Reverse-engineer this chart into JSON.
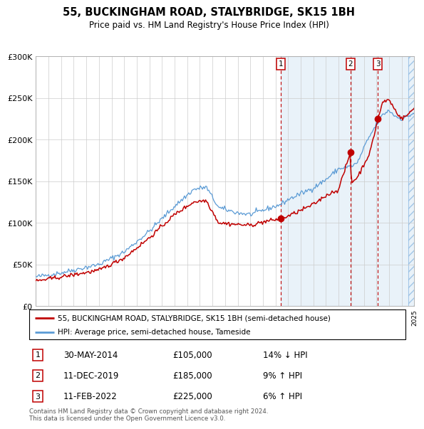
{
  "title": "55, BUCKINGHAM ROAD, STALYBRIDGE, SK15 1BH",
  "subtitle": "Price paid vs. HM Land Registry's House Price Index (HPI)",
  "ylim": [
    0,
    300000
  ],
  "yticks": [
    0,
    50000,
    100000,
    150000,
    200000,
    250000,
    300000
  ],
  "ytick_labels": [
    "£0",
    "£50K",
    "£100K",
    "£150K",
    "£200K",
    "£250K",
    "£300K"
  ],
  "x_start_year": 1995,
  "x_end_year": 2025,
  "legend_line1": "55, BUCKINGHAM ROAD, STALYBRIDGE, SK15 1BH (semi-detached house)",
  "legend_line2": "HPI: Average price, semi-detached house, Tameside",
  "sale1_date": "30-MAY-2014",
  "sale1_price": "£105,000",
  "sale1_hpi": "14% ↓ HPI",
  "sale2_date": "11-DEC-2019",
  "sale2_price": "£185,000",
  "sale2_hpi": "9% ↑ HPI",
  "sale3_date": "11-FEB-2022",
  "sale3_price": "£225,000",
  "sale3_hpi": "6% ↑ HPI",
  "footnote": "Contains HM Land Registry data © Crown copyright and database right 2024.\nThis data is licensed under the Open Government Licence v3.0.",
  "hpi_color": "#5b9bd5",
  "price_color": "#c00000",
  "sale_year1": 2014.42,
  "sale_year2": 2019.95,
  "sale_year3": 2022.12,
  "sale_val1": 105000,
  "sale_val2": 185000,
  "sale_val3": 225000
}
